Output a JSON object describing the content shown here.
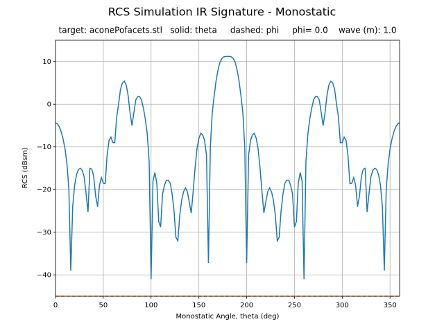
{
  "chart_data": {
    "type": "line",
    "title": "RCS Simulation IR Signature - Monostatic",
    "subtitle": "target: aconePofacets.stl   solid: theta     dashed: phi     phi= 0.0    wave (m): 1.0",
    "x_label": "Monostatic Angle, theta (deg)",
    "y_label": "RCS (dBsm)",
    "x": [
      0,
      2,
      4,
      6,
      8,
      10,
      12,
      14,
      16,
      18,
      20,
      22,
      24,
      26,
      28,
      30,
      32,
      34,
      36,
      38,
      40,
      42,
      44,
      46,
      48,
      50,
      52,
      54,
      56,
      58,
      60,
      62,
      64,
      66,
      68,
      70,
      72,
      74,
      76,
      78,
      80,
      82,
      84,
      86,
      88,
      90,
      92,
      94,
      96,
      98,
      100,
      102,
      104,
      106,
      108,
      110,
      112,
      114,
      116,
      118,
      120,
      122,
      124,
      126,
      128,
      130,
      132,
      134,
      136,
      138,
      140,
      142,
      144,
      146,
      148,
      150,
      152,
      154,
      156,
      158,
      160,
      162,
      164,
      166,
      168,
      170,
      172,
      174,
      176,
      178,
      180,
      182,
      184,
      186,
      188,
      190,
      192,
      194,
      196,
      198,
      200,
      202,
      204,
      206,
      208,
      210,
      212,
      214,
      216,
      218,
      220,
      222,
      224,
      226,
      228,
      230,
      232,
      234,
      236,
      238,
      240,
      242,
      244,
      246,
      248,
      250,
      252,
      254,
      256,
      258,
      260,
      262,
      264,
      266,
      268,
      270,
      272,
      274,
      276,
      278,
      280,
      282,
      284,
      286,
      288,
      290,
      292,
      294,
      296,
      298,
      300,
      302,
      304,
      306,
      308,
      310,
      312,
      314,
      316,
      318,
      320,
      322,
      324,
      326,
      328,
      330,
      332,
      334,
      336,
      338,
      340,
      342,
      344,
      346,
      348,
      350,
      352,
      354,
      356,
      358,
      360
    ],
    "series": [
      {
        "color": "#1f77b4",
        "linestyle": "solid",
        "values": [
          -4.3,
          -4.6,
          -5.3,
          -6.5,
          -8.2,
          -10.5,
          -14,
          -20,
          -39,
          -24,
          -19,
          -16.5,
          -15.3,
          -15,
          -15.5,
          -17,
          -21,
          -25.3,
          -15,
          -15.2,
          -17,
          -21.5,
          -24,
          -19,
          -17.2,
          -18.5,
          -18.6,
          -12,
          -8.5,
          -7.7,
          -9,
          -9,
          -3,
          0,
          3.5,
          5,
          5.4,
          4.5,
          2,
          -2,
          -5,
          -2,
          1,
          1.8,
          1.8,
          1,
          -1,
          -3.5,
          -7,
          -13.5,
          -41,
          -18,
          -16,
          -18.5,
          -27.5,
          -28.8,
          -21,
          -19,
          -17.8,
          -17.8,
          -18.5,
          -21,
          -25,
          -31.2,
          -32,
          -26,
          -22.5,
          -20.5,
          -19.6,
          -20.5,
          -23,
          -25.5,
          -20.5,
          -15,
          -10.5,
          -8,
          -6.8,
          -7.2,
          -8.5,
          -12,
          -37.2,
          -10,
          -2,
          2,
          5.5,
          8,
          9.8,
          10.7,
          11.1,
          11.2,
          11.2,
          11.2,
          11.1,
          10.7,
          9.8,
          8,
          5.5,
          2,
          -2,
          -10,
          -37.2,
          -12,
          -8.5,
          -7.2,
          -6.8,
          -8,
          -10.5,
          -15,
          -20.5,
          -25.5,
          -23,
          -20.5,
          -19.6,
          -20.5,
          -22.5,
          -26,
          -32,
          -31.2,
          -25,
          -21,
          -18.5,
          -17.8,
          -17.8,
          -19,
          -21,
          -28.8,
          -27.5,
          -18.5,
          -16,
          -18,
          -41,
          -13.5,
          -7,
          -3.5,
          -1,
          1,
          1.8,
          1.8,
          1,
          -2,
          -5,
          -2,
          2,
          4.5,
          5.4,
          5,
          3.5,
          0,
          -3,
          -9,
          -9,
          -7.7,
          -8.5,
          -12,
          -18.6,
          -18.5,
          -17.2,
          -19,
          -24,
          -21.5,
          -17,
          -15.2,
          -15,
          -25.3,
          -21,
          -17,
          -15.5,
          -15,
          -15.3,
          -16.5,
          -19,
          -24,
          -39,
          -20,
          -14,
          -10.5,
          -8.2,
          -6.5,
          -5.3,
          -4.6,
          -4.3
        ]
      },
      {
        "color": "#ff7f0e",
        "linestyle": "dashed",
        "values": [
          -45,
          -45,
          -45,
          -45,
          -45,
          -45,
          -45,
          -45,
          -45,
          -45,
          -45,
          -45,
          -45,
          -45,
          -45,
          -45,
          -45,
          -45,
          -45,
          -45,
          -45,
          -45,
          -45,
          -45,
          -45,
          -45,
          -45,
          -45,
          -45,
          -45,
          -45,
          -45,
          -45,
          -45,
          -45,
          -45,
          -45,
          -45,
          -45,
          -45,
          -45,
          -45,
          -45,
          -45,
          -45,
          -45,
          -45,
          -45,
          -45,
          -45,
          -45,
          -45,
          -45,
          -45,
          -45,
          -45,
          -45,
          -45,
          -45,
          -45,
          -45,
          -45,
          -45,
          -45,
          -45,
          -45,
          -45,
          -45,
          -45,
          -45,
          -45,
          -45,
          -45,
          -45,
          -45,
          -45,
          -45,
          -45,
          -45,
          -45,
          -45,
          -45,
          -45,
          -45,
          -45,
          -45,
          -45,
          -45,
          -45,
          -45,
          -45,
          -45,
          -45,
          -45,
          -45,
          -45,
          -45,
          -45,
          -45,
          -45,
          -45,
          -45,
          -45,
          -45,
          -45,
          -45,
          -45,
          -45,
          -45,
          -45,
          -45,
          -45,
          -45,
          -45,
          -45,
          -45,
          -45,
          -45,
          -45,
          -45,
          -45,
          -45,
          -45,
          -45,
          -45,
          -45,
          -45,
          -45,
          -45,
          -45,
          -45,
          -45,
          -45,
          -45,
          -45,
          -45,
          -45,
          -45,
          -45,
          -45,
          -45,
          -45,
          -45,
          -45,
          -45,
          -45,
          -45,
          -45,
          -45,
          -45,
          -45,
          -45,
          -45,
          -45,
          -45,
          -45,
          -45,
          -45,
          -45,
          -45,
          -45,
          -45,
          -45,
          -45,
          -45,
          -45,
          -45,
          -45,
          -45,
          -45,
          -45,
          -45,
          -45,
          -45,
          -45,
          -45,
          -45,
          -45,
          -45,
          -45,
          -45
        ]
      }
    ],
    "xlim": [
      0,
      360
    ],
    "xticks": [
      0,
      50,
      100,
      150,
      200,
      250,
      300,
      350
    ],
    "ylim": [
      -45,
      15
    ],
    "yticks": [
      {
        "value": -40,
        "label": "−40"
      },
      {
        "value": -30,
        "label": "−30"
      },
      {
        "value": -20,
        "label": "−20"
      },
      {
        "value": -10,
        "label": "−10"
      },
      0,
      10
    ],
    "grid": true
  }
}
